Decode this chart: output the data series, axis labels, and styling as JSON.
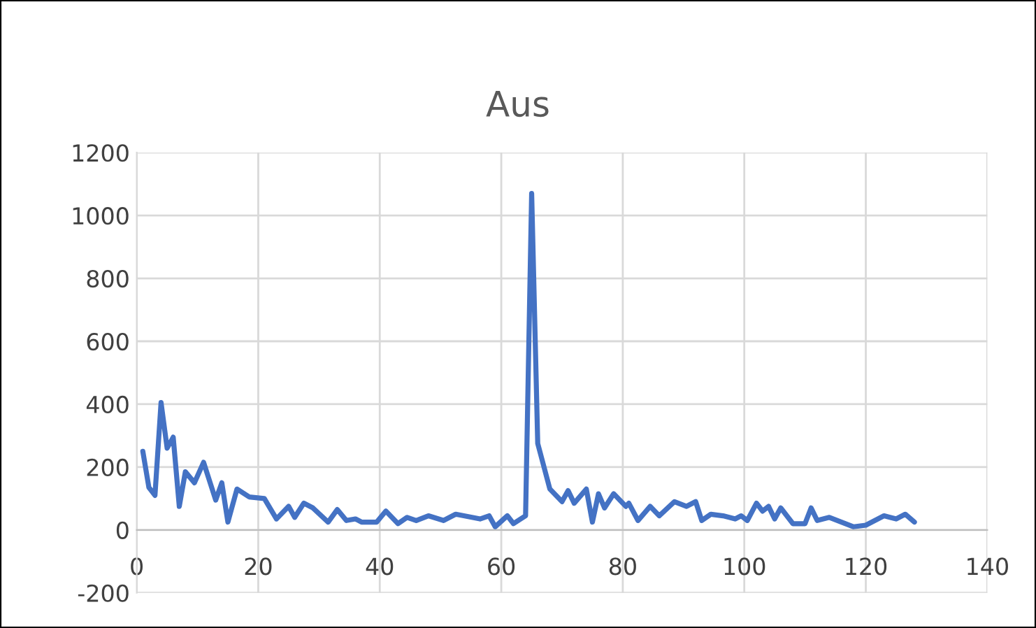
{
  "chart_data": {
    "type": "line",
    "title": "Aus",
    "x": [
      1,
      2,
      3,
      4,
      5,
      6,
      7,
      8,
      9.5,
      11,
      13,
      14,
      15,
      16.5,
      18.5,
      21,
      23,
      25,
      26,
      27.5,
      29,
      31.5,
      33,
      34.5,
      36,
      37,
      39.5,
      41,
      43,
      44.5,
      46,
      48,
      50.5,
      52.5,
      56.5,
      58,
      59,
      61,
      62,
      64,
      65,
      66,
      68,
      70,
      71,
      72,
      74,
      75,
      76,
      77,
      78.5,
      80.5,
      81,
      82.5,
      84.5,
      86,
      88.5,
      90.5,
      92,
      93,
      94.5,
      96.5,
      98.5,
      99.5,
      100.5,
      102,
      103,
      104,
      105,
      106,
      108,
      110,
      111,
      112,
      114,
      118,
      120,
      123,
      125,
      126.5,
      128
    ],
    "series": [
      {
        "color": "#4472c4",
        "values": [
          250,
          135,
          110,
          405,
          260,
          295,
          75,
          185,
          150,
          215,
          95,
          150,
          25,
          130,
          105,
          100,
          35,
          75,
          40,
          85,
          70,
          25,
          65,
          30,
          35,
          25,
          25,
          60,
          20,
          40,
          30,
          45,
          30,
          50,
          35,
          45,
          10,
          45,
          20,
          45,
          1070,
          275,
          130,
          90,
          125,
          85,
          130,
          25,
          115,
          70,
          115,
          75,
          85,
          30,
          75,
          45,
          90,
          75,
          90,
          30,
          50,
          45,
          35,
          45,
          30,
          85,
          60,
          75,
          35,
          70,
          20,
          20,
          70,
          30,
          40,
          10,
          15,
          45,
          35,
          50,
          25
        ]
      }
    ],
    "xlim": [
      0,
      140
    ],
    "xticks": [
      0,
      20,
      40,
      60,
      80,
      100,
      120,
      140
    ],
    "ylim": [
      -200,
      1200
    ],
    "yticks": [
      -200,
      0,
      200,
      400,
      600,
      800,
      1000,
      1200
    ],
    "grid": true,
    "marker": "none",
    "line_style": "solid"
  }
}
